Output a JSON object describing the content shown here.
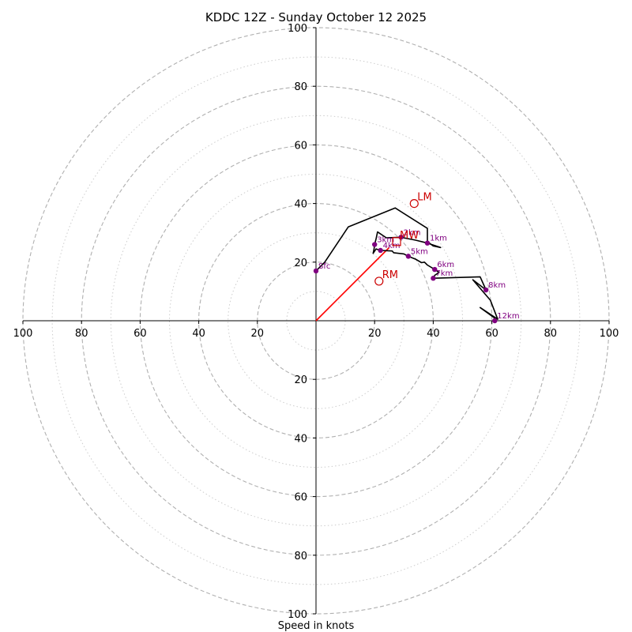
{
  "chart_data": {
    "type": "hodograph",
    "title": "KDDC 12Z - Sunday October 12 2025",
    "xlabel": "Speed in knots",
    "range": [
      -100,
      100
    ],
    "rings_dashed": [
      20,
      40,
      60,
      80,
      100
    ],
    "rings_dotted": [
      10,
      30,
      50,
      70,
      90
    ],
    "x_tick_labels": [
      "100",
      "80",
      "60",
      "40",
      "20",
      "20",
      "40",
      "60",
      "80",
      "100"
    ],
    "x_tick_values": [
      -100,
      -80,
      -60,
      -40,
      -20,
      20,
      40,
      60,
      80,
      100
    ],
    "y_tick_labels": [
      "100",
      "80",
      "60",
      "40",
      "20",
      "20",
      "40",
      "60",
      "80",
      "100"
    ],
    "y_tick_values": [
      100,
      80,
      60,
      40,
      20,
      -20,
      -40,
      -60,
      -80,
      -100
    ],
    "hodograph_trace": [
      [
        0,
        17
      ],
      [
        3,
        20
      ],
      [
        11,
        32
      ],
      [
        27,
        38.5
      ],
      [
        38,
        31.5
      ],
      [
        38,
        27
      ],
      [
        40,
        25.5
      ],
      [
        42.5,
        25
      ],
      [
        38,
        26.5
      ],
      [
        34,
        27.5
      ],
      [
        29,
        28.5
      ],
      [
        24,
        28.3
      ],
      [
        21,
        30.3
      ],
      [
        20.5,
        28
      ],
      [
        20,
        26
      ],
      [
        19.8,
        24.5
      ],
      [
        19.5,
        23
      ],
      [
        20.5,
        24.5
      ],
      [
        22,
        24
      ],
      [
        26,
        23.8
      ],
      [
        26.5,
        23.2
      ],
      [
        30,
        22.8
      ],
      [
        31.5,
        22
      ],
      [
        34,
        21
      ],
      [
        36,
        19.8
      ],
      [
        37,
        20
      ],
      [
        38,
        19
      ],
      [
        40.5,
        17.5
      ],
      [
        42,
        16.5
      ],
      [
        40.5,
        15.5
      ],
      [
        40,
        14.5
      ],
      [
        56,
        15
      ],
      [
        58,
        10.5
      ],
      [
        53.5,
        14
      ],
      [
        59.5,
        7
      ],
      [
        62,
        0.5
      ],
      [
        56,
        4.5
      ],
      [
        61.5,
        0.5
      ],
      [
        61,
        0
      ]
    ],
    "height_markers": [
      {
        "label": "Sfc",
        "u": 0,
        "v": 17
      },
      {
        "label": "1km",
        "u": 38,
        "v": 26.5
      },
      {
        "label": "2km",
        "u": 29,
        "v": 28.5
      },
      {
        "label": "3km",
        "u": 20,
        "v": 26
      },
      {
        "label": "4km",
        "u": 22,
        "v": 24
      },
      {
        "label": "5km",
        "u": 31.5,
        "v": 22
      },
      {
        "label": "6km",
        "u": 40.5,
        "v": 17.5
      },
      {
        "label": "7km",
        "u": 40,
        "v": 14.5
      },
      {
        "label": "8km",
        "u": 58,
        "v": 10.5
      },
      {
        "label": "12km",
        "u": 61,
        "v": 0
      }
    ],
    "storm_motion": [
      {
        "label": "LM",
        "u": 33.5,
        "v": 40
      },
      {
        "label": "RM",
        "u": 21.5,
        "v": 13.5
      },
      {
        "label": "MW",
        "u": 27.5,
        "v": 27
      }
    ],
    "shear_vector": {
      "from": [
        0,
        0
      ],
      "to": [
        25,
        25
      ]
    },
    "colors": {
      "trace": "#000000",
      "markers": "#800080",
      "storm_motion": "#cc0000",
      "shear_vector": "#ff0000",
      "rings": "#b0b0b0"
    }
  }
}
